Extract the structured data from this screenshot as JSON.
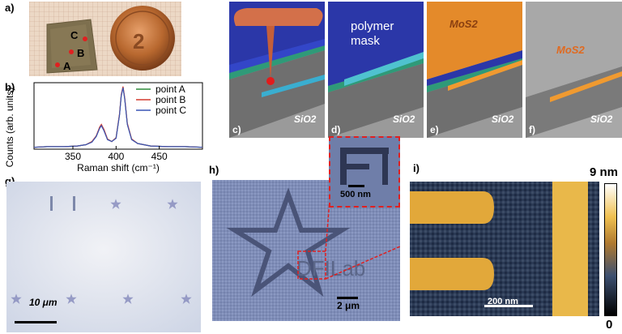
{
  "panels": {
    "a": "a)",
    "b": "b)",
    "c": "c)",
    "d": "d)",
    "e": "e)",
    "f": "f)",
    "g": "g)",
    "h": "h)",
    "i": "i)"
  },
  "photo_a": {
    "points": [
      "A",
      "B",
      "C"
    ]
  },
  "schematic": {
    "polymer_mask": [
      "polymer",
      "mask"
    ],
    "mos2_label": "MoS2",
    "sio2_label": "SiO2"
  },
  "micrograph_g": {
    "scalebar": "10 μm"
  },
  "sem_h": {
    "logo_text": "DFILab",
    "inset_scalebar": "500 nm",
    "scalebar": "2 μm"
  },
  "afm_i": {
    "scalebar": "200 nm",
    "colorbar_max": "9 nm",
    "colorbar_min": "0"
  },
  "chart_data": {
    "type": "line",
    "title": "",
    "xlabel": "Raman shift (cm⁻¹)",
    "ylabel": "Counts (arb. units)",
    "xlim": [
      305,
      500
    ],
    "ylim": [
      0,
      1.05
    ],
    "xticks": [
      350,
      400,
      450
    ],
    "x": [
      305,
      320,
      340,
      355,
      365,
      372,
      377,
      381,
      383,
      386,
      390,
      395,
      400,
      404,
      406,
      408,
      410,
      413,
      418,
      425,
      440,
      460,
      480,
      500
    ],
    "series": [
      {
        "name": "point A",
        "color": "#2e8b3a",
        "values": [
          0.03,
          0.04,
          0.04,
          0.05,
          0.07,
          0.12,
          0.2,
          0.34,
          0.38,
          0.3,
          0.16,
          0.12,
          0.18,
          0.55,
          0.85,
          0.98,
          0.8,
          0.4,
          0.16,
          0.09,
          0.05,
          0.04,
          0.04,
          0.03
        ]
      },
      {
        "name": "point B",
        "color": "#d33a2f",
        "values": [
          0.03,
          0.04,
          0.04,
          0.05,
          0.07,
          0.12,
          0.21,
          0.35,
          0.39,
          0.31,
          0.16,
          0.12,
          0.18,
          0.56,
          0.86,
          0.99,
          0.81,
          0.41,
          0.16,
          0.09,
          0.05,
          0.04,
          0.04,
          0.03
        ]
      },
      {
        "name": "point C",
        "color": "#3a55b5",
        "values": [
          0.03,
          0.04,
          0.04,
          0.05,
          0.07,
          0.11,
          0.2,
          0.33,
          0.37,
          0.29,
          0.15,
          0.12,
          0.17,
          0.54,
          0.84,
          0.97,
          0.79,
          0.39,
          0.15,
          0.09,
          0.05,
          0.04,
          0.04,
          0.03
        ]
      }
    ]
  }
}
